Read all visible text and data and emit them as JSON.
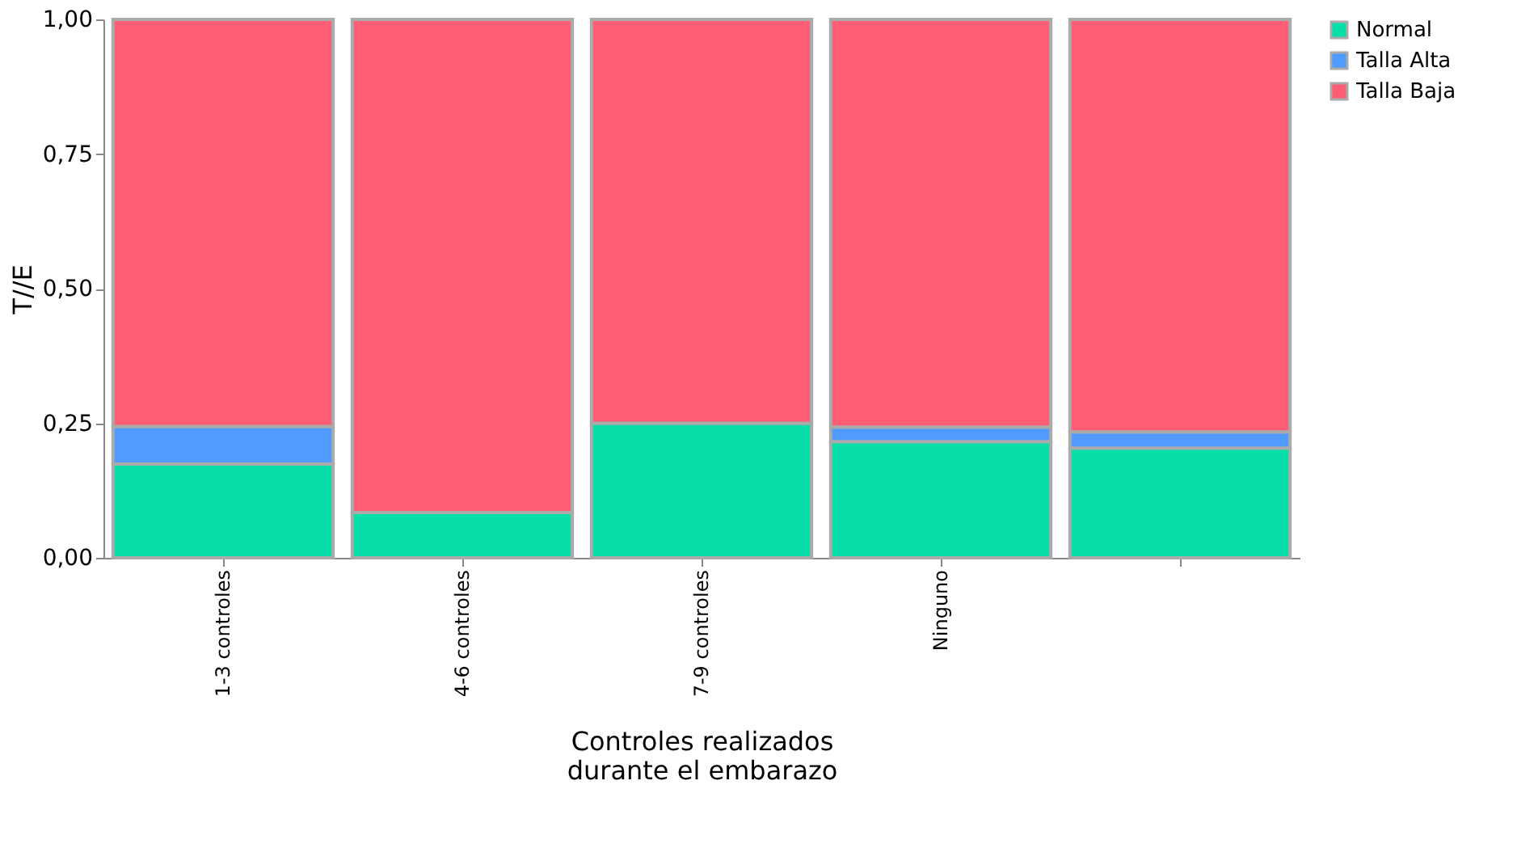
{
  "chart_data": {
    "type": "bar",
    "stacked": true,
    "xlabel": "Controles realizados\ndurante el embarazo",
    "ylabel": "T//E",
    "categories": [
      "1-3 controles",
      "4-6 controles",
      "7-9 controles",
      "Ninguno",
      null
    ],
    "series": [
      {
        "name": "Normal",
        "color": "#06e0a8",
        "values": [
          0.174,
          0.084,
          0.25,
          0.216,
          0.204
        ]
      },
      {
        "name": "Talla Alta",
        "color": "#4f9bff",
        "values": [
          0.07,
          null,
          null,
          0.027,
          0.03
        ]
      },
      {
        "name": "Talla Baja",
        "color": "#ff5c75",
        "values": [
          0.756,
          0.916,
          0.75,
          0.757,
          0.766
        ]
      }
    ],
    "ylim": [
      0,
      1
    ],
    "yticks": [
      {
        "value": 0,
        "label": "0,00"
      },
      {
        "value": 0.25,
        "label": "0,25"
      },
      {
        "value": 0.5,
        "label": "0,50"
      },
      {
        "value": 0.75,
        "label": "0,75"
      },
      {
        "value": 1,
        "label": "1,00"
      }
    ],
    "grid": false,
    "legend": "right"
  }
}
